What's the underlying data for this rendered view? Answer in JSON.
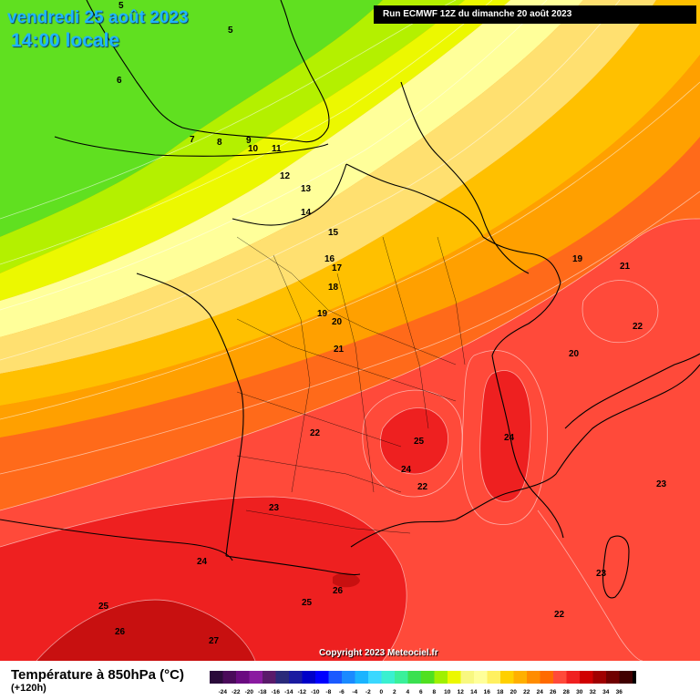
{
  "header": {
    "date": "vendredi 25 août 2023",
    "time": "14:00 locale",
    "run": "Run ECMWF 12Z du dimanche 20 août 2023"
  },
  "footer": {
    "copyright": "Copyright 2023 Meteociel.fr",
    "title": "Température à 850hPa (°C)",
    "subtitle": "(+120h)"
  },
  "legend": {
    "ticks": [
      "-24",
      "-22",
      "-20",
      "-18",
      "-16",
      "-14",
      "-12",
      "-10",
      "-8",
      "-6",
      "-4",
      "-2",
      "0",
      "2",
      "4",
      "6",
      "8",
      "10",
      "12",
      "14",
      "16",
      "18",
      "20",
      "22",
      "24",
      "26",
      "28",
      "30",
      "32",
      "34",
      "36"
    ],
    "colors": [
      "#2a0a3a",
      "#4a0a5a",
      "#6a0a80",
      "#8a1aa0",
      "#5a1a6a",
      "#2a2a7a",
      "#1a1aa0",
      "#0000c8",
      "#0000ff",
      "#1a5aff",
      "#1a8aff",
      "#1ab4ff",
      "#3ad8ff",
      "#3af0d0",
      "#3af09a",
      "#3ae050",
      "#50e020",
      "#a0f000",
      "#ecf800",
      "#f8f880",
      "#ffff9a",
      "#fff060",
      "#ffd000",
      "#ffb000",
      "#ff8c00",
      "#ff6a00",
      "#ff4a3a",
      "#f02020",
      "#d00000",
      "#a00000",
      "#700000",
      "#400000",
      "#000000"
    ]
  },
  "map_labels": [
    {
      "id": "l5a",
      "text": "5"
    },
    {
      "id": "l5b",
      "text": "5"
    },
    {
      "id": "l6",
      "text": "6"
    },
    {
      "id": "l7",
      "text": "7"
    },
    {
      "id": "l8",
      "text": "8"
    },
    {
      "id": "l9",
      "text": "9"
    },
    {
      "id": "l10",
      "text": "10"
    },
    {
      "id": "l11",
      "text": "11"
    },
    {
      "id": "l12",
      "text": "12"
    },
    {
      "id": "l13",
      "text": "13"
    },
    {
      "id": "l14",
      "text": "14"
    },
    {
      "id": "l15",
      "text": "15"
    },
    {
      "id": "l16",
      "text": "16"
    },
    {
      "id": "l17",
      "text": "17"
    },
    {
      "id": "l18",
      "text": "18"
    },
    {
      "id": "l19a",
      "text": "19"
    },
    {
      "id": "l19b",
      "text": "19"
    },
    {
      "id": "l20a",
      "text": "20"
    },
    {
      "id": "l20b",
      "text": "20"
    },
    {
      "id": "l21a",
      "text": "21"
    },
    {
      "id": "l21b",
      "text": "21"
    },
    {
      "id": "l22a",
      "text": "22"
    },
    {
      "id": "l22b",
      "text": "22"
    },
    {
      "id": "l22c",
      "text": "22"
    },
    {
      "id": "l22d",
      "text": "22"
    },
    {
      "id": "l23a",
      "text": "23"
    },
    {
      "id": "l23b",
      "text": "23"
    },
    {
      "id": "l23c",
      "text": "23"
    },
    {
      "id": "l24a",
      "text": "24"
    },
    {
      "id": "l24b",
      "text": "24"
    },
    {
      "id": "l24c",
      "text": "24"
    },
    {
      "id": "l25a",
      "text": "25"
    },
    {
      "id": "l25b",
      "text": "25"
    },
    {
      "id": "l25c",
      "text": "25"
    },
    {
      "id": "l26a",
      "text": "26"
    },
    {
      "id": "l26b",
      "text": "26"
    },
    {
      "id": "l27",
      "text": "27"
    }
  ]
}
